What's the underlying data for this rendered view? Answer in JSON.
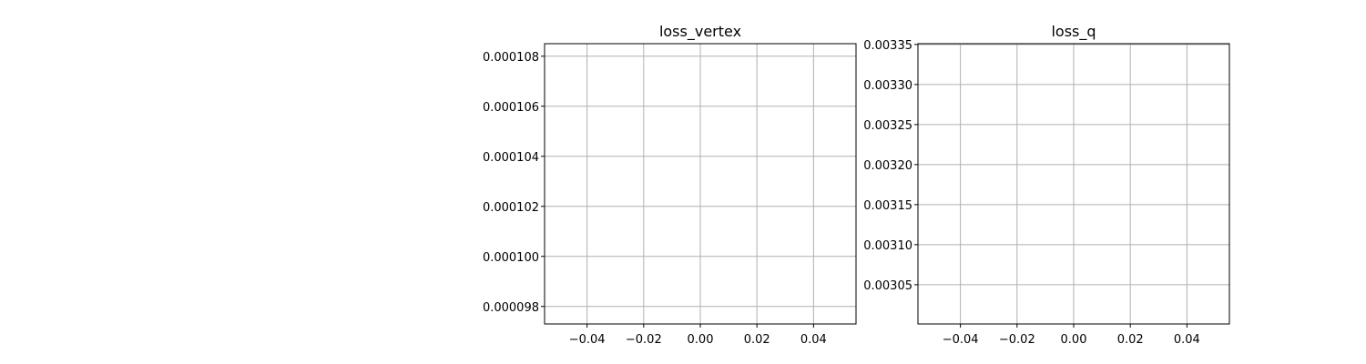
{
  "chart_data": [
    {
      "type": "line",
      "title": "loss_vertex",
      "xlabel": "",
      "ylabel": "",
      "x_ticks": [
        -0.04,
        -0.02,
        0.0,
        0.02,
        0.04
      ],
      "x_tick_labels": [
        "−0.04",
        "−0.02",
        "0.00",
        "0.02",
        "0.04"
      ],
      "xlim": [
        -0.055,
        0.055
      ],
      "y_ticks": [
        9.8e-05,
        0.0001,
        0.000102,
        0.000104,
        0.000106,
        0.000108
      ],
      "y_tick_labels": [
        "0.000098",
        "0.000100",
        "0.000102",
        "0.000104",
        "0.000106",
        "0.000108"
      ],
      "ylim": [
        9.73e-05,
        0.0001085
      ],
      "grid": true,
      "series": []
    },
    {
      "type": "line",
      "title": "loss_q",
      "xlabel": "",
      "ylabel": "",
      "x_ticks": [
        -0.04,
        -0.02,
        0.0,
        0.02,
        0.04
      ],
      "x_tick_labels": [
        "−0.04",
        "−0.02",
        "0.00",
        "0.02",
        "0.04"
      ],
      "xlim": [
        -0.055,
        0.055
      ],
      "y_ticks": [
        0.00305,
        0.0031,
        0.00315,
        0.0032,
        0.00325,
        0.0033,
        0.00335
      ],
      "y_tick_labels": [
        "0.00305",
        "0.00310",
        "0.00315",
        "0.00320",
        "0.00325",
        "0.00330",
        "0.00335"
      ],
      "ylim": [
        0.003001,
        0.003351
      ],
      "grid": true,
      "series": []
    }
  ]
}
